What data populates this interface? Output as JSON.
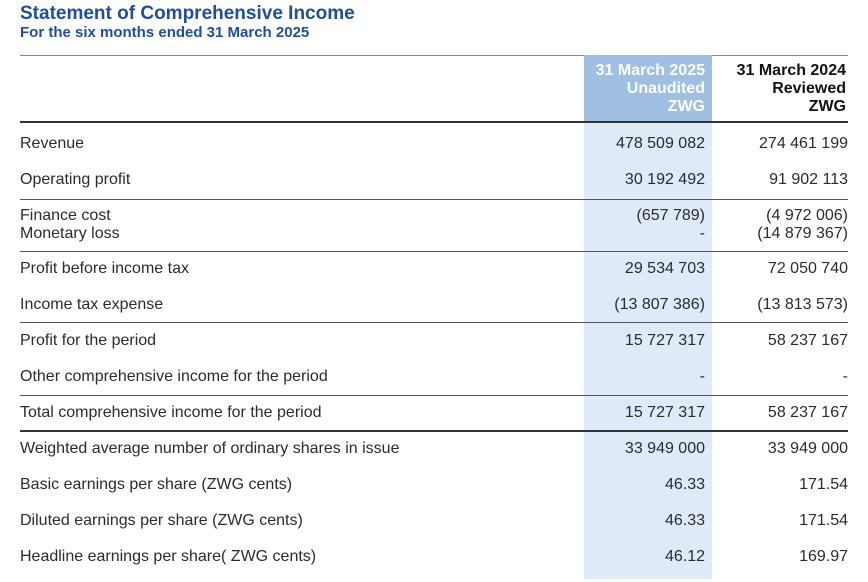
{
  "header": {
    "title": "Statement of Comprehensive Income",
    "subtitle": "For the six months ended 31 March 2025"
  },
  "columns": [
    {
      "line1": "31 March 2025",
      "line2": "Unaudited",
      "line3": "ZWG"
    },
    {
      "line1": "31 March 2024",
      "line2": "Reviewed",
      "line3": "ZWG"
    }
  ],
  "rows": [
    {
      "label": "Revenue",
      "v1": "478 509 082",
      "v2": "274 461 199"
    },
    {
      "label": "Operating profit",
      "v1": "30 192 492",
      "v2": "91 902 113"
    },
    {
      "label": "Finance cost",
      "v1": "(657 789)",
      "v2": "(4 972 006)"
    },
    {
      "label": "Monetary loss",
      "v1": "-",
      "v2": "(14 879 367)"
    },
    {
      "label": "Profit before income tax",
      "v1": "29 534 703",
      "v2": "72 050 740"
    },
    {
      "label": "Income tax expense",
      "v1": "(13 807 386)",
      "v2": "(13 813 573)"
    },
    {
      "label": "Profit for the period",
      "v1": "15 727 317",
      "v2": "58 237 167"
    },
    {
      "label": "Other comprehensive income for the period",
      "v1": "-",
      "v2": "-"
    },
    {
      "label": "Total comprehensive income for the period",
      "v1": "15 727 317",
      "v2": "58 237 167"
    },
    {
      "label": "Weighted average number of ordinary shares in issue",
      "v1": "33 949 000",
      "v2": "33 949 000"
    },
    {
      "label": "Basic earnings per share (ZWG cents)",
      "v1": "46.33",
      "v2": "171.54"
    },
    {
      "label": "Diluted earnings per share (ZWG cents)",
      "v1": "46.33",
      "v2": "171.54"
    },
    {
      "label": "Headline earnings per share( ZWG cents)",
      "v1": "46.12",
      "v2": "169.97"
    }
  ]
}
